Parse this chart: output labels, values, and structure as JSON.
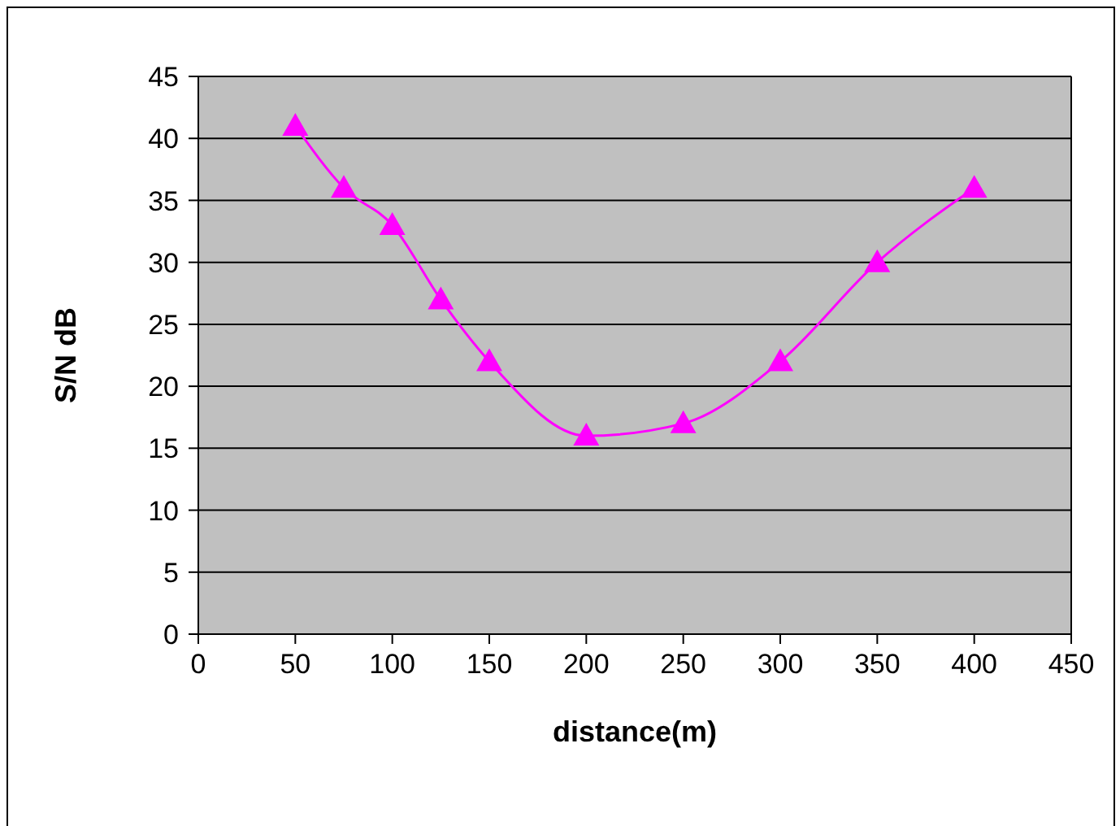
{
  "chart_data": {
    "type": "line",
    "xlabel": "distance(m)",
    "ylabel": "S/N dB",
    "x": [
      50,
      75,
      100,
      125,
      150,
      200,
      250,
      300,
      350,
      400
    ],
    "series": [
      {
        "color": "#ff00ff",
        "values": [
          41,
          36,
          33,
          27,
          22,
          16,
          17,
          22,
          30,
          36
        ]
      }
    ],
    "xlim": [
      0,
      450
    ],
    "xticks": [
      0,
      50,
      100,
      150,
      200,
      250,
      300,
      350,
      400,
      450
    ],
    "ylim": [
      0,
      45
    ],
    "yticks": [
      0,
      5,
      10,
      15,
      20,
      25,
      30,
      35,
      40,
      45
    ],
    "grid": "y",
    "legend": false,
    "marker": "triangle",
    "line_style": "solid"
  }
}
